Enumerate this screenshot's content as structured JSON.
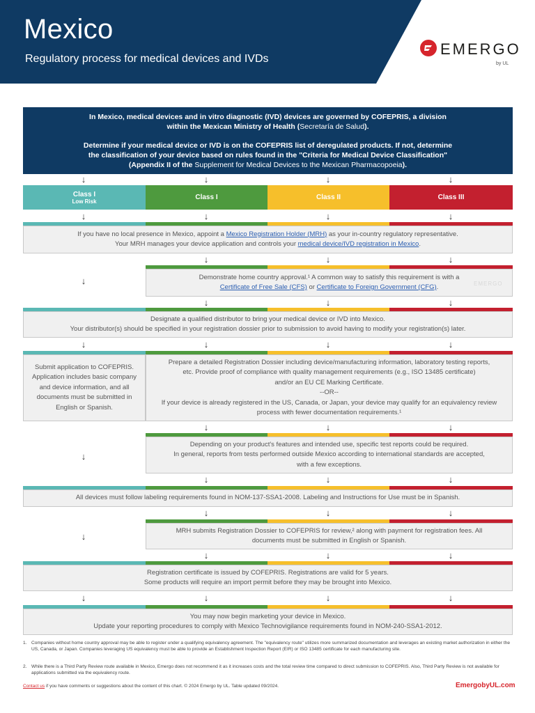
{
  "header": {
    "title": "Mexico",
    "subtitle": "Regulatory process for medical devices and IVDs",
    "logo_text": "EMERGO",
    "logo_sub": "by UL",
    "bg_color": "#0f3a63"
  },
  "intro": {
    "line1": "In Mexico, medical devices and in vitro diagnostic (IVD) devices are governed by COFEPRIS, a division",
    "line2a": "within the Mexican Ministry of Health (",
    "line2b": "Secretaría de Salud",
    "line2c": ").",
    "line3": "Determine if your medical device or IVD is on the COFEPRIS list of deregulated products. If not, determine",
    "line4": "the classification of your device based on rules found in the \"Criteria for Medical Device Classification\"",
    "line5a": "(Appendix II of the ",
    "line5b": "Supplement for Medical Devices to the Mexican Pharmacopoeia",
    "line5c": ")."
  },
  "classes": [
    {
      "label": "Class I",
      "sub": "Low Risk",
      "color": "#5ab8b4"
    },
    {
      "label": "Class I",
      "sub": "",
      "color": "#4e9a3e"
    },
    {
      "label": "Class II",
      "sub": "",
      "color": "#f6bf2b"
    },
    {
      "label": "Class III",
      "sub": "",
      "color": "#c3202f"
    }
  ],
  "steps": {
    "mrh": {
      "l1a": "If you have no local presence in Mexico, appoint a ",
      "l1link": "Mexico Registration Holder (MRH)",
      "l1b": " as your in-country regulatory representative.",
      "l2a": "Your MRH manages your device application and controls your ",
      "l2link": "medical device/IVD registration in Mexico",
      "l2b": "."
    },
    "approval": {
      "l1": "Demonstrate home country approval.¹ A common way to satisfy this requirement is with a",
      "link1": "Certificate of Free Sale (CFS)",
      "mid": " or ",
      "link2": "Certificate to Foreign Government (CFG)",
      "end": "."
    },
    "distributor": {
      "l1": "Designate a qualified distributor to bring your medical device or IVD into Mexico.",
      "l2": "Your distributor(s) should be specified in your registration dossier prior to submission to avoid having to modify your registration(s) later."
    },
    "submit_low": {
      "l1": "Submit application to COFEPRIS.",
      "l2": "Application includes basic company",
      "l3": "and device information, and all",
      "l4": "documents must be submitted in",
      "l5": "English or Spanish."
    },
    "dossier": {
      "l1": "Prepare a detailed Registration Dossier including device/manufacturing information, laboratory testing reports,",
      "l2": "etc. Provide proof of compliance with quality management requirements (e.g., ISO 13485 certificate)",
      "l3": "and/or an EU CE Marking Certificate.",
      "l4": "--OR--",
      "l5": "If your device is already registered in the US, Canada, or Japan, your device may qualify for an equivalency review",
      "l6": "process with fewer documentation requirements.¹"
    },
    "tests": {
      "l1": "Depending on your product's features and intended use, specific test reports could be required.",
      "l2": "In general, reports from tests performed outside Mexico according to international standards are accepted,",
      "l3": "with a few exceptions."
    },
    "labeling": {
      "l1": "All devices must follow labeling requirements found in NOM-137-SSA1-2008. Labeling and Instructions for Use must be in Spanish."
    },
    "review": {
      "l1": "MRH submits Registration Dossier to COFEPRIS for review,² along with payment for registration fees. All",
      "l2": "documents must be submitted in English or Spanish."
    },
    "certificate": {
      "l1": "Registration certificate is issued by COFEPRIS. Registrations are valid for 5 years.",
      "l2": "Some products will require an import permit before they may be brought into Mexico."
    },
    "market": {
      "l1": "You may now begin marketing your device in Mexico.",
      "l2": "Update your reporting procedures to comply with Mexico Technovigilance requirements found in NOM-240-SSA1-2012."
    }
  },
  "arrow_glyph": "↓",
  "watermark": "EMERGO",
  "notes": [
    {
      "num": "1.",
      "text": "Companies without home country approval may be able to register under a qualifying equivalency agreement. The \"equivalency route\" utilizes more summarized documentation and leverages an existing market authorization in either the US, Canada, or Japan. Companies leveraging US equivalency must be able to provide an Establishment Inspection Report (EIR) or ISO 13485 certificate for each manufacturing site."
    },
    {
      "num": "2.",
      "text": "While there is a Third Party Review route available in Mexico, Emergo does not recommend it as it increases costs and the total review time compared to direct submission to COFEPRIS. Also, Third Party Review is not available for applications submitted via the equivalency route."
    }
  ],
  "footer": {
    "contact_link": "Contact us",
    "contact_text": " if you have comments or suggestions about the content of this chart. © 2024 Emergo by UL. Table updated 09/2024.",
    "site": "EmergobyUL.com"
  }
}
